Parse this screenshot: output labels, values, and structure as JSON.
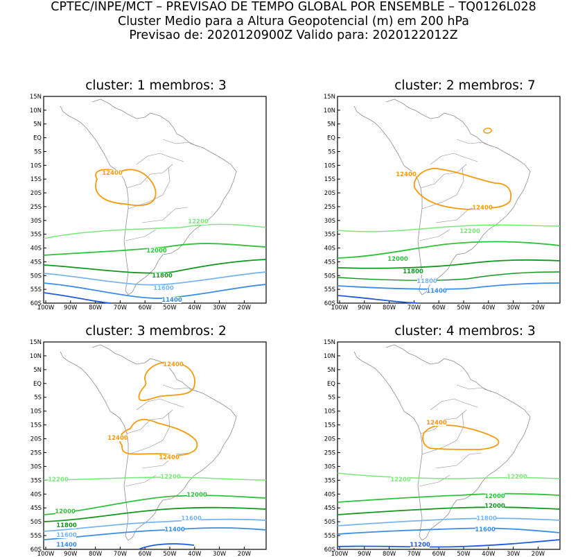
{
  "header": {
    "line1": "CPTEC/INPE/MCT – PREVISAO DE TEMPO GLOBAL POR ENSEMBLE – TQ0126L028",
    "line2": "Cluster Medio para a Altura Geopotencial (m) em 200 hPa",
    "line3": "Previsao de: 2020120900Z    Valido para: 2020122012Z"
  },
  "axes": {
    "lat_ticks": [
      "15N",
      "10N",
      "5N",
      "EQ",
      "5S",
      "10S",
      "15S",
      "20S",
      "25S",
      "30S",
      "35S",
      "40S",
      "45S",
      "50S",
      "55S",
      "60S"
    ],
    "lon_ticks": [
      "100W",
      "90W",
      "80W",
      "70W",
      "60W",
      "50W",
      "40W",
      "30W",
      "20W"
    ]
  },
  "colors": {
    "c12400": "#f59a0e",
    "c12200": "#78e878",
    "c12000": "#2ec23a",
    "c11800": "#14961e",
    "c11600": "#78b4f0",
    "c11400": "#3a8ce6",
    "c11200": "#1e5adc",
    "land": "#8c8c8c"
  },
  "panels": [
    {
      "title": "cluster: 1   membros: 3",
      "labels": [
        "12400",
        "12200",
        "12000",
        "11800",
        "11600",
        "11400"
      ]
    },
    {
      "title": "cluster: 2   membros: 7",
      "labels": [
        "12400",
        "12400",
        "12200",
        "12000",
        "11800",
        "11800",
        "11400"
      ]
    },
    {
      "title": "cluster: 3   membros: 2",
      "labels": [
        "12400",
        "12400",
        "12400",
        "12200",
        "12200",
        "12000",
        "12000",
        "11800",
        "11600",
        "11600",
        "11400",
        "11400"
      ]
    },
    {
      "title": "cluster: 4   membros: 3",
      "labels": [
        "12400",
        "12200",
        "12200",
        "12000",
        "12000",
        "11800",
        "11600",
        "11400",
        "11200"
      ]
    }
  ]
}
